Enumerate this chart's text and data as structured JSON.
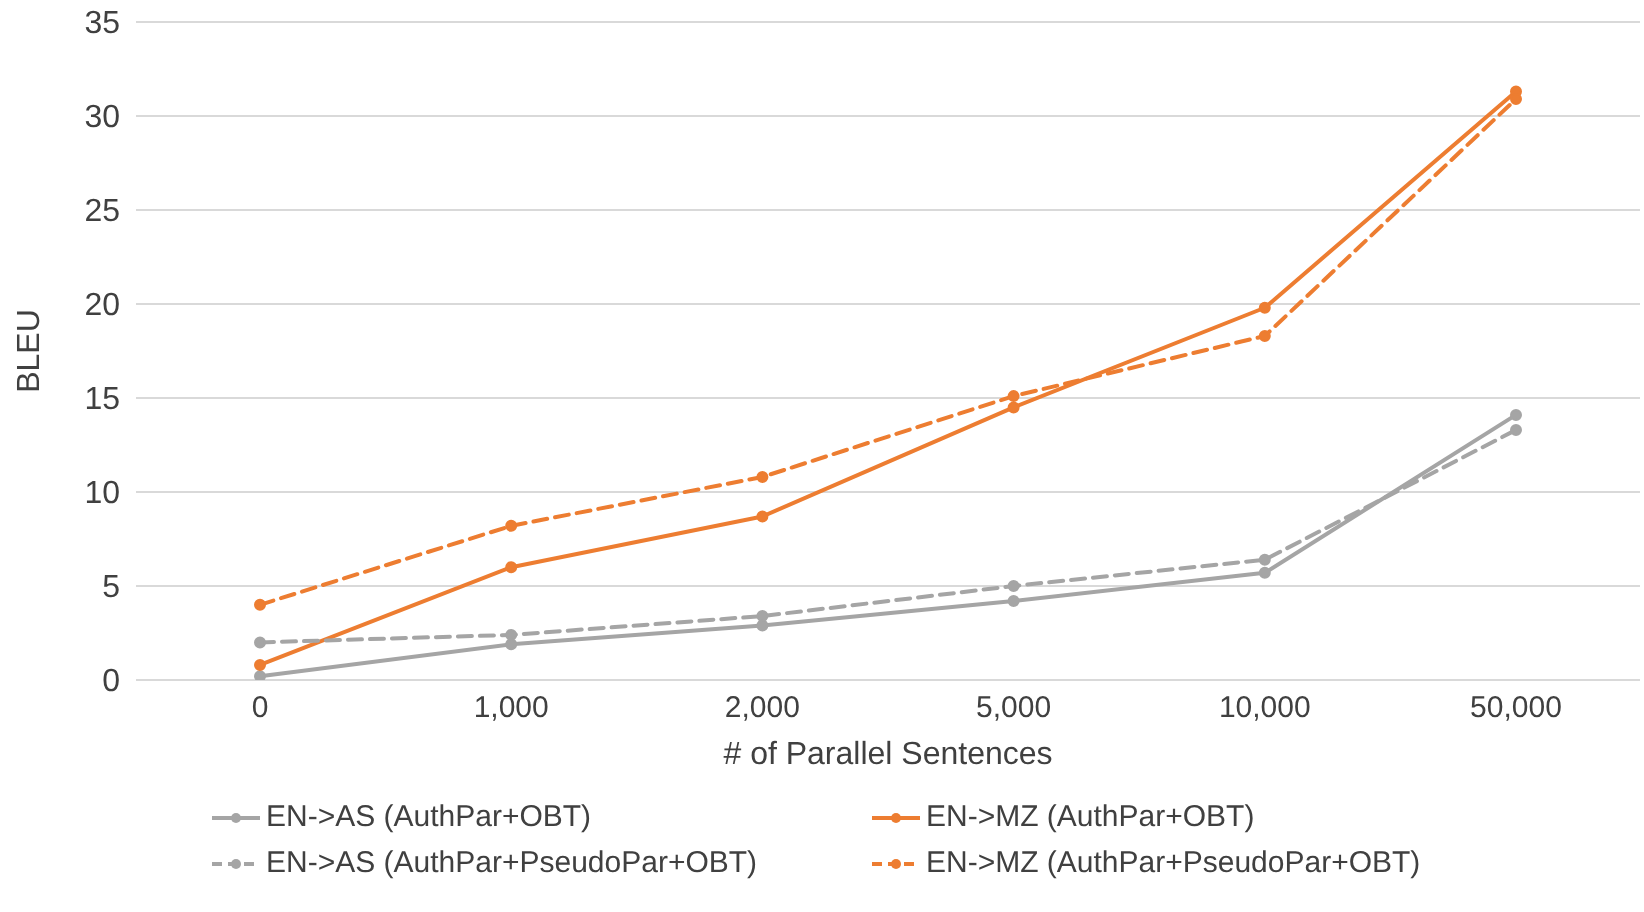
{
  "chart_data": {
    "type": "line",
    "xlabel": "# of Parallel Sentences",
    "ylabel": "BLEU",
    "categories": [
      "0",
      "1,000",
      "2,000",
      "5,000",
      "10,000",
      "50,000"
    ],
    "ylim": [
      0,
      35
    ],
    "yticks": [
      0,
      5,
      10,
      15,
      20,
      25,
      30,
      35
    ],
    "grid": "y",
    "legend": "bottom",
    "marker": "circle",
    "series": [
      {
        "name": "EN->AS (AuthPar+OBT)",
        "color": "#a5a5a5",
        "line_style": "solid",
        "values": [
          0.2,
          1.9,
          2.9,
          4.2,
          5.7,
          14.1
        ]
      },
      {
        "name": "EN->MZ (AuthPar+OBT)",
        "color": "#ed7d31",
        "line_style": "solid",
        "values": [
          0.8,
          6.0,
          8.7,
          14.5,
          19.8,
          31.3
        ]
      },
      {
        "name": "EN->AS (AuthPar+PseudoPar+OBT)",
        "color": "#a5a5a5",
        "line_style": "dashed",
        "values": [
          2.0,
          2.4,
          3.4,
          5.0,
          6.4,
          13.3
        ]
      },
      {
        "name": "EN->MZ (AuthPar+PseudoPar+OBT)",
        "color": "#ed7d31",
        "line_style": "dashed",
        "values": [
          4.0,
          8.2,
          10.8,
          15.1,
          18.3,
          30.9
        ]
      }
    ]
  }
}
